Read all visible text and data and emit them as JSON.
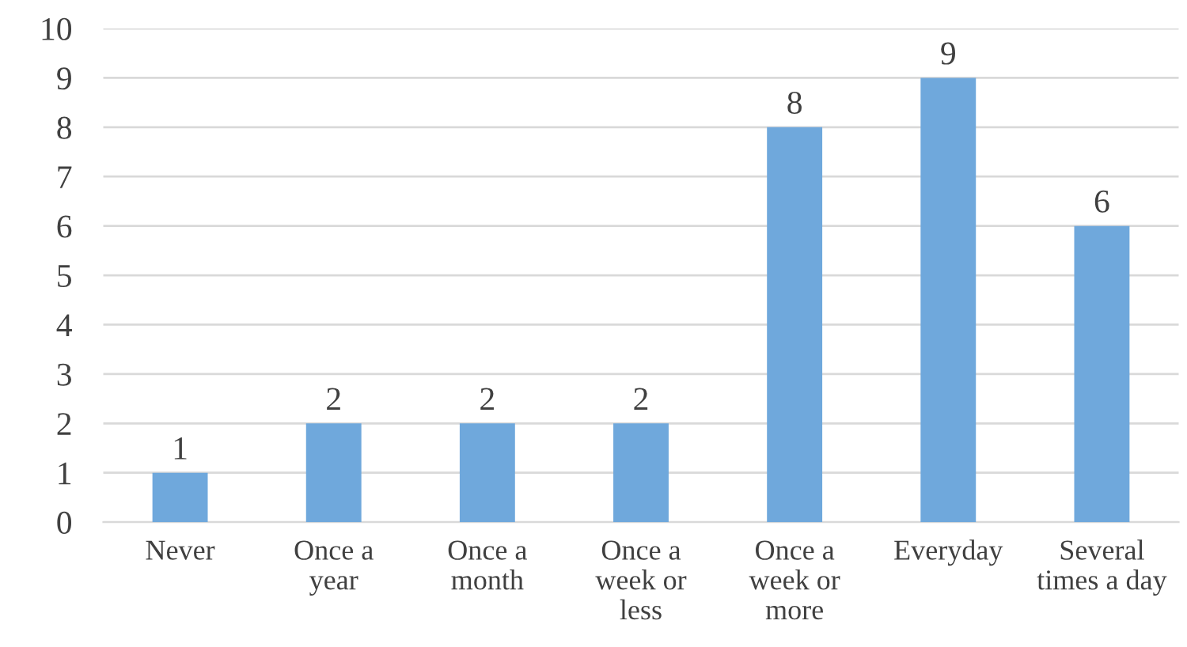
{
  "chart_data": {
    "type": "bar",
    "categories": [
      "Never",
      "Once a\nyear",
      "Once a\nmonth",
      "Once a\nweek or\nless",
      "Once a\nweek or\nmore",
      "Everyday",
      "Several\ntimes a day"
    ],
    "values": [
      1,
      2,
      2,
      2,
      8,
      9,
      6
    ],
    "color": "#6fa8dc",
    "ylim": [
      0,
      10
    ],
    "yticks": [
      0,
      1,
      2,
      3,
      4,
      5,
      6,
      7,
      8,
      9,
      10
    ],
    "grid": "y",
    "data_labels": true,
    "legend": false
  }
}
